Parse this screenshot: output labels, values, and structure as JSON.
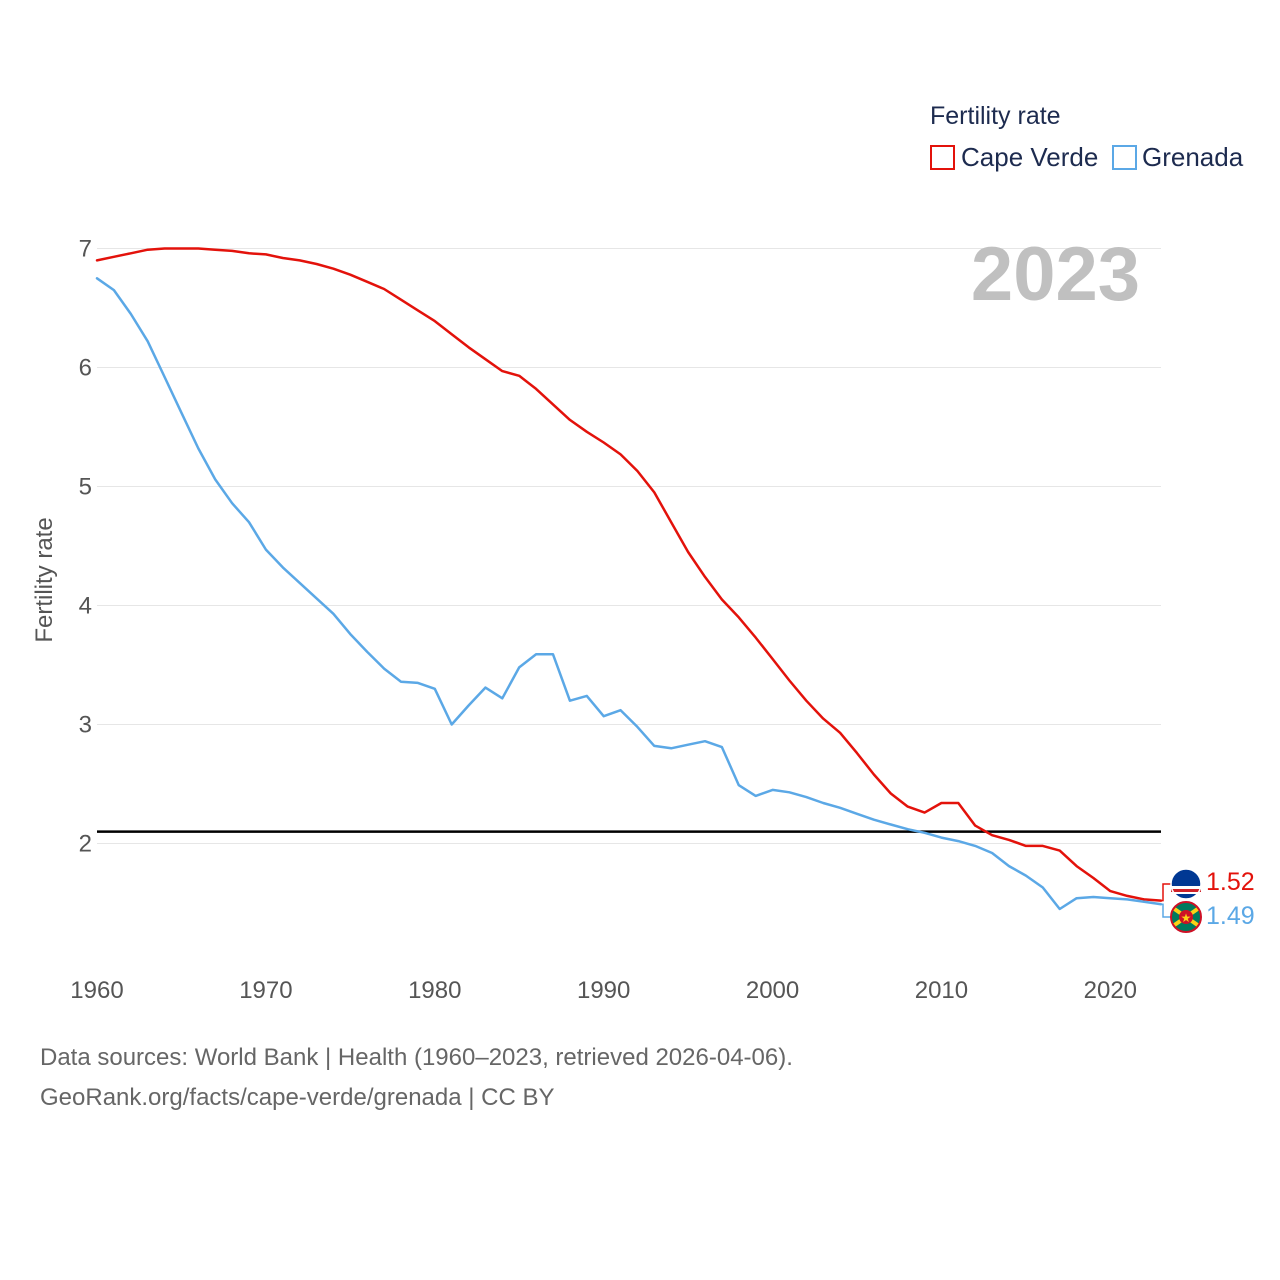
{
  "chart_data": {
    "type": "line",
    "ylabel": "Fertility rate",
    "xlim": [
      1960,
      2023
    ],
    "ylim": [
      1.0,
      7.2
    ],
    "x_ticks": [
      1960,
      1970,
      1980,
      1990,
      2000,
      2010,
      2020
    ],
    "y_ticks": [
      2,
      3,
      4,
      5,
      6,
      7
    ],
    "grid": true,
    "year_label": "2023",
    "legend": {
      "title": "Fertility rate",
      "position": "top-right"
    },
    "reference_line": {
      "y": 2.1,
      "color": "#000000"
    },
    "x": [
      1960,
      1961,
      1962,
      1963,
      1964,
      1965,
      1966,
      1967,
      1968,
      1969,
      1970,
      1971,
      1972,
      1973,
      1974,
      1975,
      1976,
      1977,
      1978,
      1979,
      1980,
      1981,
      1982,
      1983,
      1984,
      1985,
      1986,
      1987,
      1988,
      1989,
      1990,
      1991,
      1992,
      1993,
      1994,
      1995,
      1996,
      1997,
      1998,
      1999,
      2000,
      2001,
      2002,
      2003,
      2004,
      2005,
      2006,
      2007,
      2008,
      2009,
      2010,
      2011,
      2012,
      2013,
      2014,
      2015,
      2016,
      2017,
      2018,
      2019,
      2020,
      2021,
      2022,
      2023
    ],
    "series": [
      {
        "name": "Cape Verde",
        "color": "#e3120b",
        "end_label": "1.52",
        "values": [
          6.9,
          6.93,
          6.96,
          6.99,
          7.0,
          7.0,
          7.0,
          6.99,
          6.98,
          6.96,
          6.95,
          6.92,
          6.9,
          6.87,
          6.83,
          6.78,
          6.72,
          6.66,
          6.57,
          6.48,
          6.39,
          6.28,
          6.17,
          6.07,
          5.97,
          5.93,
          5.82,
          5.69,
          5.56,
          5.46,
          5.37,
          5.27,
          5.13,
          4.95,
          4.7,
          4.45,
          4.24,
          4.05,
          3.9,
          3.73,
          3.55,
          3.37,
          3.2,
          3.05,
          2.93,
          2.76,
          2.58,
          2.42,
          2.31,
          2.26,
          2.34,
          2.34,
          2.15,
          2.07,
          2.03,
          1.98,
          1.98,
          1.94,
          1.81,
          1.71,
          1.6,
          1.56,
          1.53,
          1.52
        ]
      },
      {
        "name": "Grenada",
        "color": "#5ba8e6",
        "end_label": "1.49",
        "values": [
          6.75,
          6.65,
          6.45,
          6.22,
          5.92,
          5.62,
          5.32,
          5.06,
          4.86,
          4.7,
          4.47,
          4.32,
          4.19,
          4.06,
          3.93,
          3.76,
          3.61,
          3.47,
          3.36,
          3.35,
          3.3,
          3.0,
          3.16,
          3.31,
          3.22,
          3.48,
          3.59,
          3.59,
          3.2,
          3.24,
          3.07,
          3.12,
          2.98,
          2.82,
          2.8,
          2.83,
          2.86,
          2.81,
          2.49,
          2.4,
          2.45,
          2.43,
          2.39,
          2.34,
          2.3,
          2.25,
          2.2,
          2.16,
          2.12,
          2.09,
          2.05,
          2.02,
          1.98,
          1.92,
          1.81,
          1.73,
          1.63,
          1.45,
          1.54,
          1.55,
          1.54,
          1.53,
          1.51,
          1.49
        ]
      }
    ]
  },
  "footer": {
    "source_line": "Data sources: World Bank | Health (1960–2023, retrieved 2026-04-06).",
    "credit_line": "GeoRank.org/facts/cape-verde/grenada | CC BY"
  }
}
